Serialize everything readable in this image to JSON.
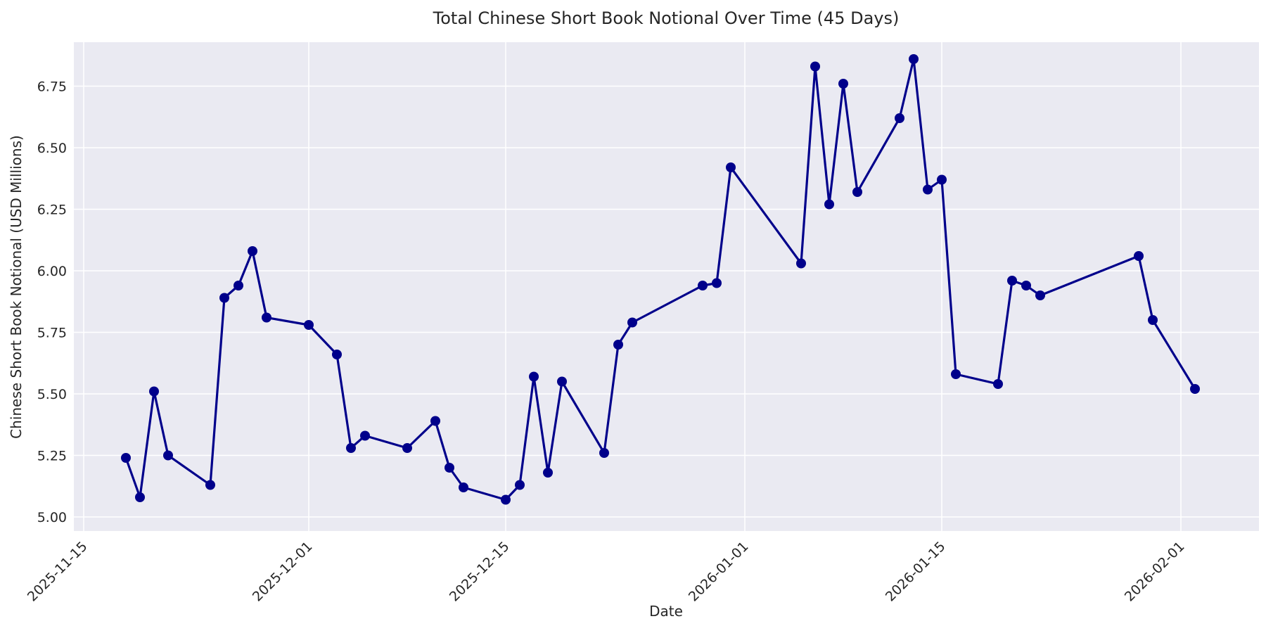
{
  "figure": {
    "title": "Total Chinese Short Book Notional Over Time (45 Days)",
    "background_color": "#ffffff",
    "plot_background_color": "#eaeaf2",
    "grid_color": "#ffffff",
    "text_color": "#262626",
    "line_color": "#00008b"
  },
  "x_axis": {
    "label": "Date",
    "tick_labels": [
      "2025-11-15",
      "2025-12-01",
      "2025-12-15",
      "2026-01-01",
      "2026-01-15",
      "2026-02-01"
    ],
    "tick_rotation_degrees": 45
  },
  "y_axis": {
    "label": "Chinese Short Book Notional (USD Millions)",
    "tick_labels": [
      "5.00",
      "5.25",
      "5.50",
      "5.75",
      "6.00",
      "6.25",
      "6.50",
      "6.75"
    ]
  },
  "chart_data": {
    "type": "line",
    "title": "Total Chinese Short Book Notional Over Time (45 Days)",
    "xlabel": "Date",
    "ylabel": "Chinese Short Book Notional (USD Millions)",
    "series_name": "Total Chinese Short Book Notional",
    "marker": "circle",
    "grid": true,
    "legend_position": "none",
    "ylim": [
      4.94,
      6.93
    ],
    "xlim": [
      "2025-11-14",
      "2026-02-06"
    ],
    "x_tick_dates": [
      "2025-11-15",
      "2025-12-01",
      "2025-12-15",
      "2026-01-01",
      "2026-01-15",
      "2026-02-01"
    ],
    "y_tick_values": [
      5.0,
      5.25,
      5.5,
      5.75,
      6.0,
      6.25,
      6.5,
      6.75
    ],
    "x": [
      "2025-11-18",
      "2025-11-19",
      "2025-11-20",
      "2025-11-21",
      "2025-11-24",
      "2025-11-25",
      "2025-11-26",
      "2025-11-27",
      "2025-11-28",
      "2025-12-01",
      "2025-12-03",
      "2025-12-04",
      "2025-12-05",
      "2025-12-08",
      "2025-12-10",
      "2025-12-11",
      "2025-12-12",
      "2025-12-15",
      "2025-12-16",
      "2025-12-17",
      "2025-12-18",
      "2025-12-19",
      "2025-12-22",
      "2025-12-23",
      "2025-12-24",
      "2025-12-29",
      "2025-12-30",
      "2025-12-31",
      "2026-01-05",
      "2026-01-06",
      "2026-01-07",
      "2026-01-08",
      "2026-01-09",
      "2026-01-12",
      "2026-01-13",
      "2026-01-14",
      "2026-01-15",
      "2026-01-16",
      "2026-01-19",
      "2026-01-20",
      "2026-01-21",
      "2026-01-22",
      "2026-01-29",
      "2026-01-30",
      "2026-02-02"
    ],
    "values": [
      5.24,
      5.08,
      5.51,
      5.25,
      5.13,
      5.89,
      5.94,
      6.08,
      5.81,
      5.78,
      5.66,
      5.28,
      5.33,
      5.28,
      5.39,
      5.2,
      5.12,
      5.07,
      5.13,
      5.57,
      5.18,
      5.55,
      5.26,
      5.7,
      5.79,
      5.94,
      5.95,
      6.42,
      6.03,
      6.83,
      6.27,
      6.76,
      6.32,
      6.62,
      6.86,
      6.33,
      6.37,
      5.58,
      5.54,
      5.96,
      5.94,
      5.9,
      6.06,
      5.8,
      5.52
    ]
  }
}
